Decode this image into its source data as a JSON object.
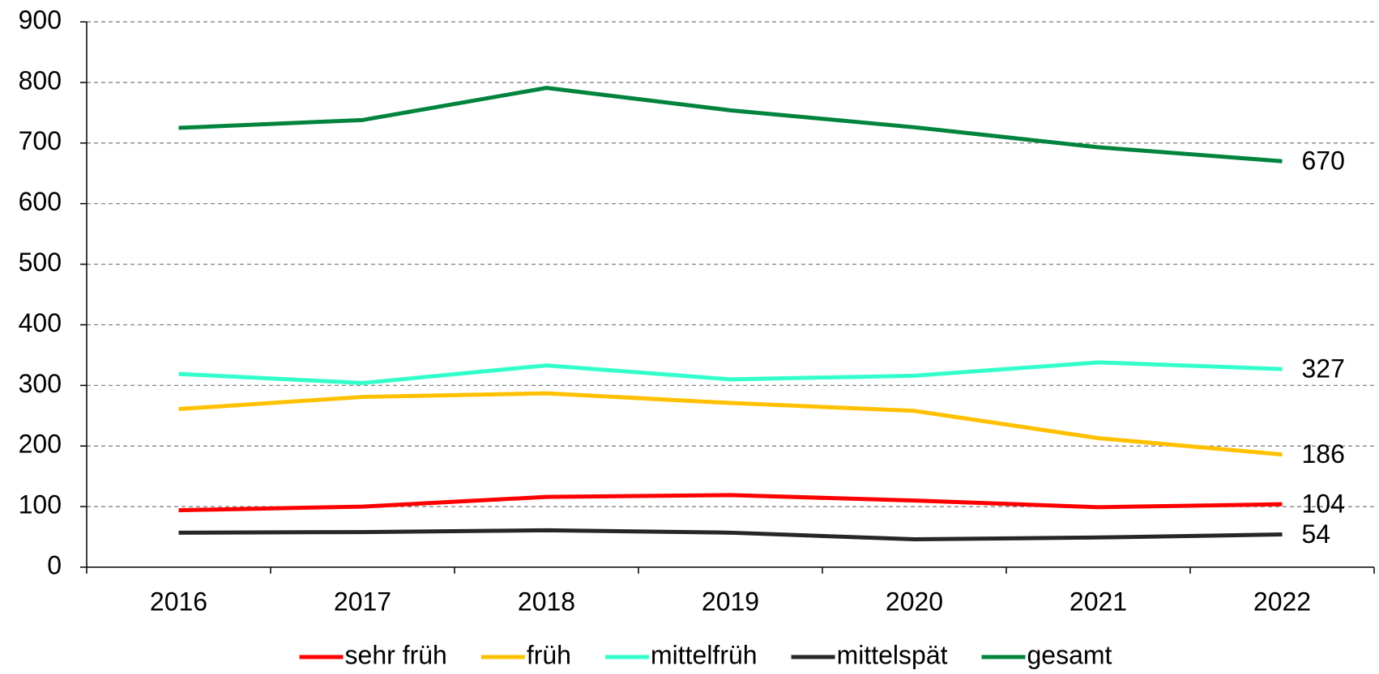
{
  "chart_data": {
    "type": "line",
    "categories": [
      "2016",
      "2017",
      "2018",
      "2019",
      "2020",
      "2021",
      "2022"
    ],
    "series": [
      {
        "name": "sehr früh",
        "color": "#ff0000",
        "values": [
          94,
          100,
          116,
          119,
          110,
          99,
          104
        ]
      },
      {
        "name": "früh",
        "color": "#ffc000",
        "values": [
          261,
          281,
          287,
          271,
          258,
          213,
          186
        ]
      },
      {
        "name": "mittelfrüh",
        "color": "#33ffcc",
        "values": [
          319,
          304,
          333,
          310,
          316,
          338,
          327
        ]
      },
      {
        "name": "mittelspät",
        "color": "#262626",
        "values": [
          57,
          58,
          61,
          57,
          46,
          49,
          54
        ]
      },
      {
        "name": "gesamt",
        "color": "#00843d",
        "values": [
          725,
          738,
          791,
          754,
          726,
          693,
          670
        ]
      }
    ],
    "ylim": [
      0,
      900
    ],
    "yticks": [
      0,
      100,
      200,
      300,
      400,
      500,
      600,
      700,
      800,
      900
    ],
    "grid": true
  }
}
